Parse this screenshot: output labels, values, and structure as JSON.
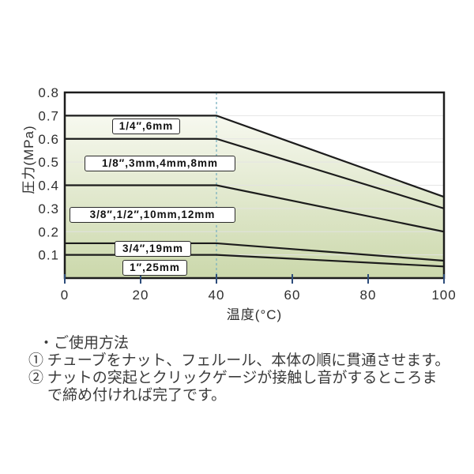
{
  "chart_data": {
    "type": "line",
    "title": "",
    "xlabel": "温度(°C)",
    "ylabel": "圧力(MPa)",
    "xlim": [
      0,
      100
    ],
    "ylim": [
      0,
      0.8
    ],
    "x_ticks": [
      0,
      20,
      40,
      60,
      80,
      100
    ],
    "x_tick_labels": [
      "0",
      "20",
      "40",
      "60",
      "80",
      "100"
    ],
    "y_ticks": [
      0.1,
      0.2,
      0.3,
      0.4,
      0.5,
      0.6,
      0.7,
      0.8
    ],
    "y_tick_labels": [
      "0.1",
      "0.2",
      "0.3",
      "0.4",
      "0.5",
      "0.6",
      "0.7",
      "0.8"
    ],
    "grid": true,
    "legend_position": "inline-boxes",
    "reference_line_x": 40,
    "series": [
      {
        "name": "1/4″,6mm",
        "x": [
          0,
          40,
          100
        ],
        "y": [
          0.7,
          0.7,
          0.35
        ]
      },
      {
        "name": "1/8″,3mm,4mm,8mm",
        "x": [
          0,
          40,
          100
        ],
        "y": [
          0.6,
          0.6,
          0.3
        ]
      },
      {
        "name": "3/8″,1/2″,10mm,12mm",
        "x": [
          0,
          40,
          100
        ],
        "y": [
          0.4,
          0.4,
          0.2
        ]
      },
      {
        "name": "3/4″,19mm",
        "x": [
          0,
          40,
          100
        ],
        "y": [
          0.15,
          0.15,
          0.075
        ]
      },
      {
        "name": "1″,25mm",
        "x": [
          0,
          40,
          100
        ],
        "y": [
          0.1,
          0.1,
          0.05
        ]
      }
    ],
    "colors": {
      "line": "#1c1c1c",
      "border": "#1c1c1c",
      "grid": "#e3e3e3",
      "tick": "#2e4d7b",
      "reference_line": "#7ab1bf",
      "fill_top": "#fdfdf9",
      "fill_bottom": "#cbd8ab",
      "tick_label": "#2f2f2f"
    }
  },
  "usage": {
    "lines": [
      "・ご使用方法",
      "① チューブをナット、フェルール、本体の順に貫通させます。",
      "② ナットの突起とクリックゲージが接触し音がするところま",
      "で締め付ければ完了です。"
    ]
  }
}
